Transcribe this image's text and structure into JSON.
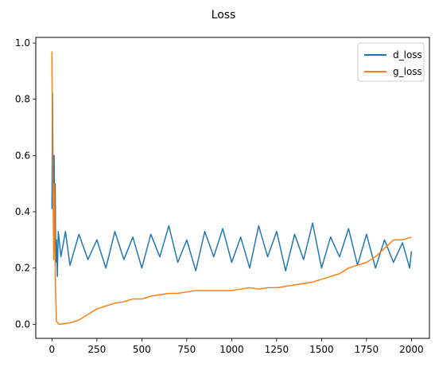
{
  "chart_data": {
    "type": "line",
    "title": "Loss",
    "xlabel": "",
    "ylabel": "",
    "xlim": [
      -90,
      2100
    ],
    "ylim": [
      -0.05,
      1.02
    ],
    "xticks": [
      0,
      250,
      500,
      750,
      1000,
      1250,
      1500,
      1750,
      2000
    ],
    "xtick_labels": [
      "0",
      "250",
      "500",
      "750",
      "1000",
      "1250",
      "1500",
      "1750",
      "2000"
    ],
    "yticks": [
      0.0,
      0.2,
      0.4,
      0.6,
      0.8,
      1.0
    ],
    "ytick_labels": [
      "0.0",
      "0.2",
      "0.4",
      "0.6",
      "0.8",
      "1.0"
    ],
    "grid": false,
    "legend": "top-right",
    "series": [
      {
        "name": "d_loss",
        "color": "#1f77b4",
        "points": [
          [
            0,
            0.41
          ],
          [
            3,
            0.82
          ],
          [
            6,
            0.55
          ],
          [
            9,
            0.38
          ],
          [
            12,
            0.6
          ],
          [
            15,
            0.28
          ],
          [
            18,
            0.5
          ],
          [
            21,
            0.22
          ],
          [
            25,
            0.3
          ],
          [
            30,
            0.17
          ],
          [
            35,
            0.33
          ],
          [
            50,
            0.24
          ],
          [
            75,
            0.33
          ],
          [
            100,
            0.21
          ],
          [
            150,
            0.32
          ],
          [
            200,
            0.23
          ],
          [
            250,
            0.3
          ],
          [
            300,
            0.2
          ],
          [
            350,
            0.33
          ],
          [
            400,
            0.23
          ],
          [
            450,
            0.31
          ],
          [
            500,
            0.2
          ],
          [
            550,
            0.32
          ],
          [
            600,
            0.24
          ],
          [
            650,
            0.35
          ],
          [
            700,
            0.22
          ],
          [
            750,
            0.3
          ],
          [
            800,
            0.19
          ],
          [
            850,
            0.33
          ],
          [
            900,
            0.24
          ],
          [
            950,
            0.34
          ],
          [
            1000,
            0.22
          ],
          [
            1050,
            0.31
          ],
          [
            1100,
            0.2
          ],
          [
            1150,
            0.35
          ],
          [
            1200,
            0.24
          ],
          [
            1250,
            0.33
          ],
          [
            1300,
            0.19
          ],
          [
            1350,
            0.32
          ],
          [
            1400,
            0.23
          ],
          [
            1450,
            0.36
          ],
          [
            1500,
            0.2
          ],
          [
            1550,
            0.31
          ],
          [
            1600,
            0.24
          ],
          [
            1650,
            0.34
          ],
          [
            1700,
            0.21
          ],
          [
            1750,
            0.32
          ],
          [
            1800,
            0.2
          ],
          [
            1850,
            0.3
          ],
          [
            1900,
            0.22
          ],
          [
            1950,
            0.29
          ],
          [
            1990,
            0.2
          ],
          [
            2000,
            0.26
          ]
        ]
      },
      {
        "name": "g_loss",
        "color": "#ff7f0e",
        "points": [
          [
            0,
            0.97
          ],
          [
            3,
            0.63
          ],
          [
            6,
            0.45
          ],
          [
            10,
            0.23
          ],
          [
            13,
            0.5
          ],
          [
            16,
            0.3
          ],
          [
            20,
            0.12
          ],
          [
            25,
            0.01
          ],
          [
            40,
            0.0
          ],
          [
            100,
            0.005
          ],
          [
            150,
            0.015
          ],
          [
            200,
            0.035
          ],
          [
            250,
            0.055
          ],
          [
            300,
            0.065
          ],
          [
            350,
            0.075
          ],
          [
            400,
            0.08
          ],
          [
            450,
            0.09
          ],
          [
            500,
            0.09
          ],
          [
            550,
            0.1
          ],
          [
            600,
            0.105
          ],
          [
            650,
            0.11
          ],
          [
            700,
            0.11
          ],
          [
            750,
            0.115
          ],
          [
            800,
            0.12
          ],
          [
            850,
            0.12
          ],
          [
            900,
            0.12
          ],
          [
            950,
            0.12
          ],
          [
            1000,
            0.12
          ],
          [
            1050,
            0.125
          ],
          [
            1100,
            0.13
          ],
          [
            1150,
            0.125
          ],
          [
            1200,
            0.13
          ],
          [
            1250,
            0.13
          ],
          [
            1300,
            0.135
          ],
          [
            1350,
            0.14
          ],
          [
            1400,
            0.145
          ],
          [
            1450,
            0.15
          ],
          [
            1500,
            0.16
          ],
          [
            1550,
            0.17
          ],
          [
            1600,
            0.18
          ],
          [
            1650,
            0.2
          ],
          [
            1700,
            0.21
          ],
          [
            1750,
            0.22
          ],
          [
            1800,
            0.24
          ],
          [
            1850,
            0.27
          ],
          [
            1900,
            0.3
          ],
          [
            1950,
            0.3
          ],
          [
            2000,
            0.31
          ]
        ]
      }
    ]
  }
}
